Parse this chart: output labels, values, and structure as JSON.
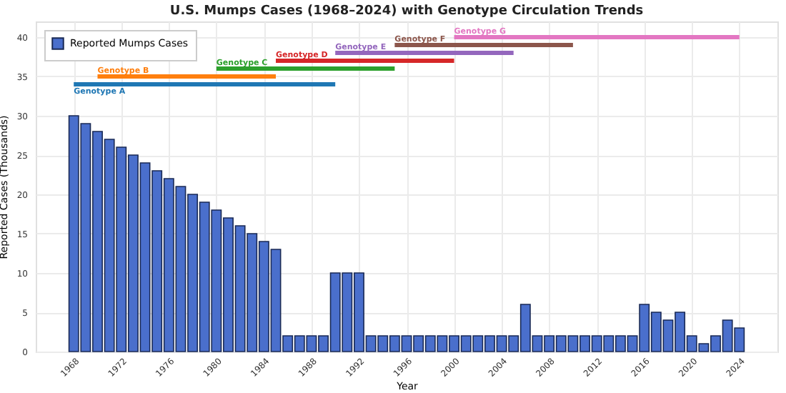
{
  "chart_data": {
    "type": "bar",
    "title": "U.S. Mumps Cases (1968–2024) with Genotype Circulation Trends",
    "xlabel": "Year",
    "ylabel": "Reported Cases (Thousands)",
    "x": [
      1968,
      1969,
      1970,
      1971,
      1972,
      1973,
      1974,
      1975,
      1976,
      1977,
      1978,
      1979,
      1980,
      1981,
      1982,
      1983,
      1984,
      1985,
      1986,
      1987,
      1988,
      1989,
      1990,
      1991,
      1992,
      1993,
      1994,
      1995,
      1996,
      1997,
      1998,
      1999,
      2000,
      2001,
      2002,
      2003,
      2004,
      2005,
      2006,
      2007,
      2008,
      2009,
      2010,
      2011,
      2012,
      2013,
      2014,
      2015,
      2016,
      2017,
      2018,
      2019,
      2020,
      2021,
      2022,
      2023,
      2024
    ],
    "xlim": [
      1964.8,
      2027.2
    ],
    "xticks": [
      1968,
      1972,
      1976,
      1980,
      1984,
      1988,
      1992,
      1996,
      2000,
      2004,
      2008,
      2012,
      2016,
      2020,
      2024
    ],
    "ylim": [
      0,
      42
    ],
    "yticks": [
      0,
      5,
      10,
      15,
      20,
      25,
      30,
      35,
      40
    ],
    "grid": true,
    "legend": "top left",
    "series": [
      {
        "name": "Reported Mumps Cases",
        "color": "#4a6fcc",
        "values": [
          30,
          29,
          28,
          27,
          26,
          25,
          24,
          23,
          22,
          21,
          20,
          19,
          18,
          17,
          16,
          15,
          14,
          13,
          2,
          2,
          2,
          2,
          10,
          10,
          10,
          2,
          2,
          2,
          2,
          2,
          2,
          2,
          2,
          2,
          2,
          2,
          2,
          2,
          6,
          2,
          2,
          2,
          2,
          2,
          2,
          2,
          2,
          2,
          6,
          5,
          4,
          5,
          2,
          1,
          2,
          4,
          3
        ]
      },
      {
        "type": "line",
        "name": "Genotype A",
        "color": "#1f77b4",
        "x": [
          1968,
          1990
        ],
        "values": [
          34,
          34
        ]
      },
      {
        "type": "line",
        "name": "Genotype B",
        "color": "#ff7f0e",
        "x": [
          1970,
          1985
        ],
        "values": [
          35,
          35
        ]
      },
      {
        "type": "line",
        "name": "Genotype C",
        "color": "#2ca02c",
        "x": [
          1980,
          1995
        ],
        "values": [
          36,
          36
        ]
      },
      {
        "type": "line",
        "name": "Genotype D",
        "color": "#d62728",
        "x": [
          1985,
          2000
        ],
        "values": [
          37,
          37
        ]
      },
      {
        "type": "line",
        "name": "Genotype E",
        "color": "#9467bd",
        "x": [
          1990,
          2005
        ],
        "values": [
          38,
          38
        ]
      },
      {
        "type": "line",
        "name": "Genotype F",
        "color": "#8c564b",
        "x": [
          1995,
          2010
        ],
        "values": [
          39,
          39
        ]
      },
      {
        "type": "line",
        "name": "Genotype G",
        "color": "#e377c2",
        "x": [
          2000,
          2024
        ],
        "values": [
          40,
          40
        ]
      }
    ]
  }
}
